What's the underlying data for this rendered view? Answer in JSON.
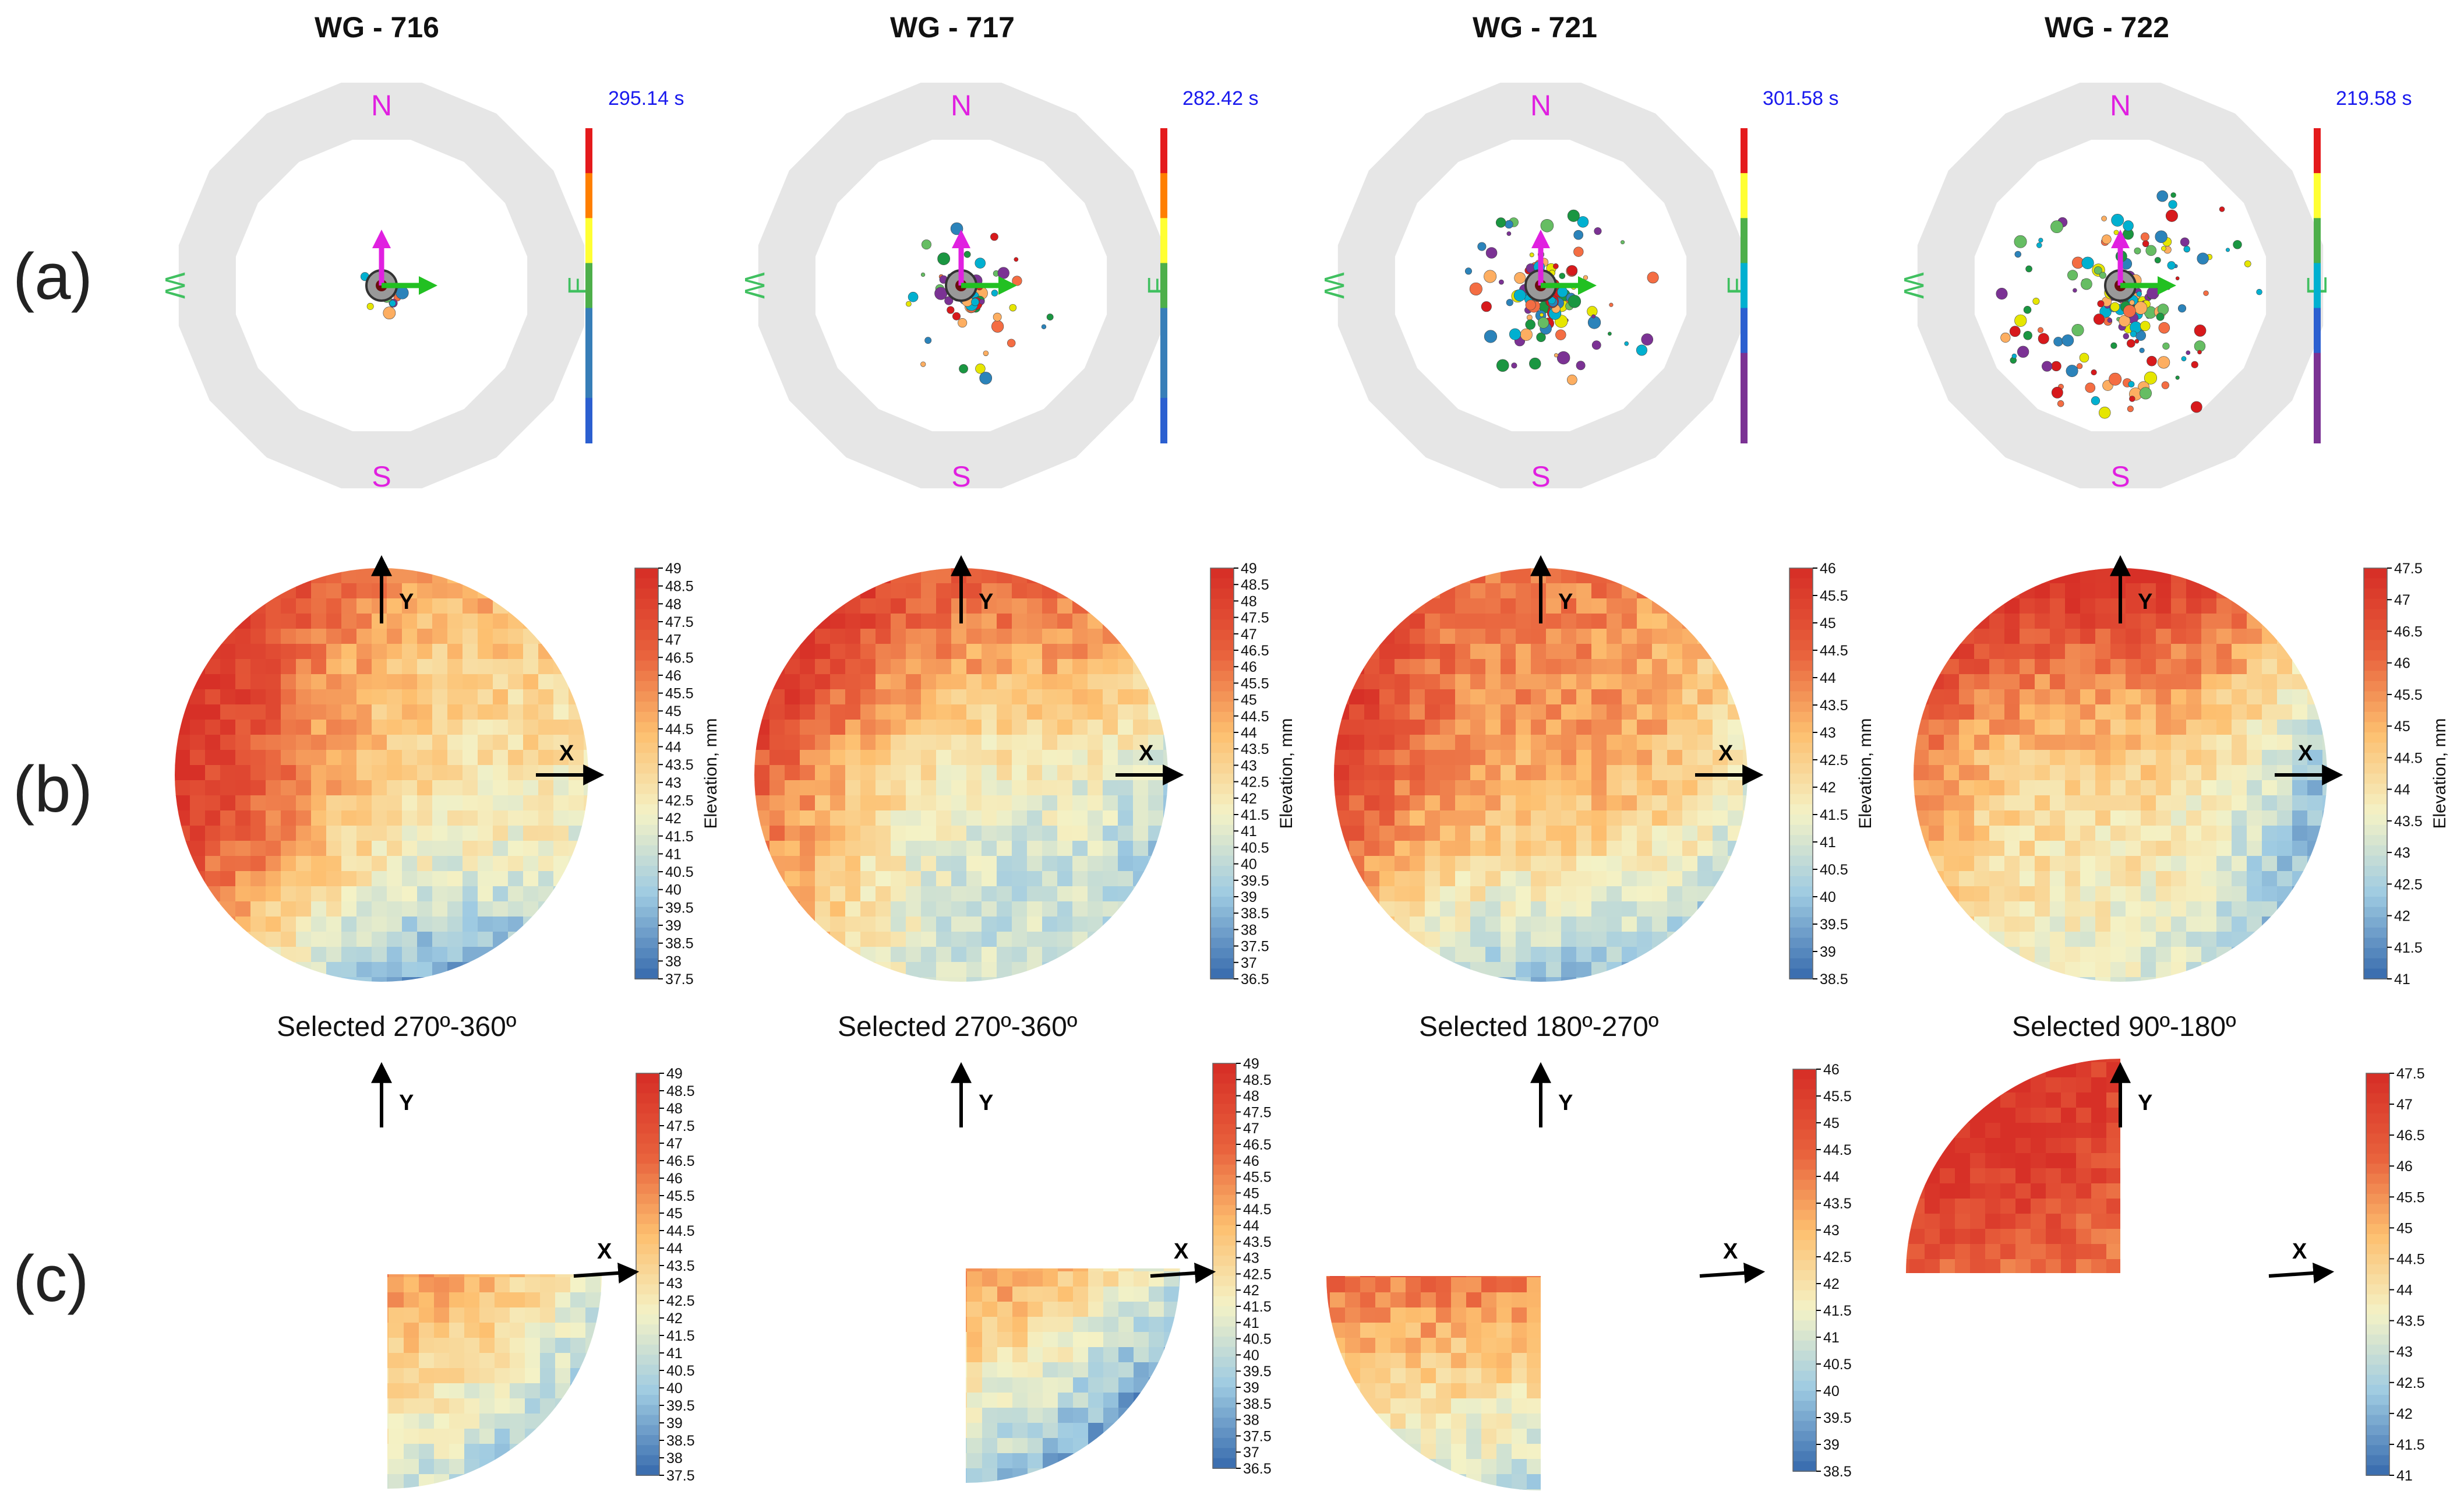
{
  "row_labels": [
    "(a)",
    "(b)",
    "(c)"
  ],
  "colorbar_title": "Elevation, mm",
  "compass": {
    "north": "N",
    "south": "S",
    "east": "E",
    "west": "W"
  },
  "axis_labels": {
    "x": "X",
    "y": "Y"
  },
  "colors": {
    "ring": "#e6e6e6",
    "compass_ns": "#e020e0",
    "compass_ew": "#40c060",
    "arrow_magenta": "#e020e0",
    "arrow_green": "#22c022",
    "time_text": "#1a1aee",
    "ramp": [
      "#3c6fb0",
      "#9fcbe2",
      "#f4f2c6",
      "#fdbf6f",
      "#e8613c",
      "#d73027"
    ]
  },
  "panels": [
    {
      "title": "WG - 716",
      "time": "295.14  s",
      "selected": "Selected 270º-360º",
      "colorbar_ticks": [
        "49",
        "48.5",
        "48",
        "47.5",
        "47",
        "46.5",
        "46",
        "45.5",
        "45",
        "44.5",
        "44",
        "43.5",
        "43",
        "42.5",
        "42",
        "41.5",
        "41",
        "40.5",
        "40",
        "39.5",
        "39",
        "38.5",
        "38",
        "37.5"
      ]
    },
    {
      "title": "WG - 717",
      "time": "282.42  s",
      "selected": "Selected 270º-360º",
      "colorbar_ticks": [
        "49",
        "48.5",
        "48",
        "47.5",
        "47",
        "46.5",
        "46",
        "45.5",
        "45",
        "44.5",
        "44",
        "43.5",
        "43",
        "42.5",
        "42",
        "41.5",
        "41",
        "40.5",
        "40",
        "39.5",
        "39",
        "38.5",
        "38",
        "37.5",
        "37",
        "36.5"
      ]
    },
    {
      "title": "WG - 721",
      "time": "301.58  s",
      "selected": "Selected 180º-270º",
      "colorbar_ticks": [
        "46",
        "45.5",
        "45",
        "44.5",
        "44",
        "43.5",
        "43",
        "42.5",
        "42",
        "41.5",
        "41",
        "40.5",
        "40",
        "39.5",
        "39",
        "38.5"
      ]
    },
    {
      "title": "WG - 722",
      "time": "219.58  s",
      "selected": "Selected 90º-180º",
      "colorbar_ticks": [
        "47.5",
        "47",
        "46.5",
        "46",
        "45.5",
        "45",
        "44.5",
        "44",
        "43.5",
        "43",
        "42.5",
        "42",
        "41.5",
        "41"
      ]
    }
  ]
}
